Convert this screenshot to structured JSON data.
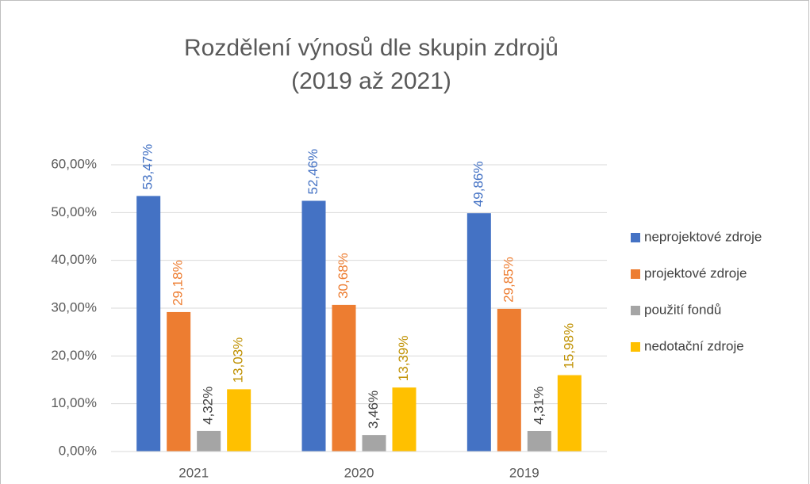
{
  "chart_data": {
    "type": "bar",
    "title": [
      "Rozdělení výnosů dle skupin zdrojů",
      "(2019 až 2021)"
    ],
    "categories": [
      "2021",
      "2020",
      "2019"
    ],
    "series": [
      {
        "name": "neprojektové zdroje",
        "color": "#4472c4",
        "label_color": "#4472c4",
        "values": [
          53.47,
          52.46,
          49.86
        ],
        "value_labels": [
          "53,47%",
          "52,46%",
          "49,86%"
        ]
      },
      {
        "name": "projektové zdroje",
        "color": "#ed7d31",
        "label_color": "#ed7d31",
        "values": [
          29.18,
          30.68,
          29.85
        ],
        "value_labels": [
          "29,18%",
          "30,68%",
          "29,85%"
        ]
      },
      {
        "name": "použití fondů",
        "color": "#a5a5a5",
        "label_color": "#404040",
        "values": [
          4.32,
          3.46,
          4.31
        ],
        "value_labels": [
          "4,32%",
          "3,46%",
          "4,31%"
        ]
      },
      {
        "name": "nedotační zdroje",
        "color": "#ffc000",
        "label_color": "#bf9000",
        "values": [
          13.03,
          13.39,
          15.98
        ],
        "value_labels": [
          "13,03%",
          "13,39%",
          "15,98%"
        ]
      }
    ],
    "ylim": [
      0,
      60
    ],
    "yticks": [
      {
        "value": 0,
        "label": "0,00%"
      },
      {
        "value": 10,
        "label": "10,00%"
      },
      {
        "value": 20,
        "label": "20,00%"
      },
      {
        "value": 30,
        "label": "30,00%"
      },
      {
        "value": 40,
        "label": "40,00%"
      },
      {
        "value": 50,
        "label": "50,00%"
      },
      {
        "value": 60,
        "label": "60,00%"
      }
    ],
    "grid": true,
    "legend": "right"
  }
}
